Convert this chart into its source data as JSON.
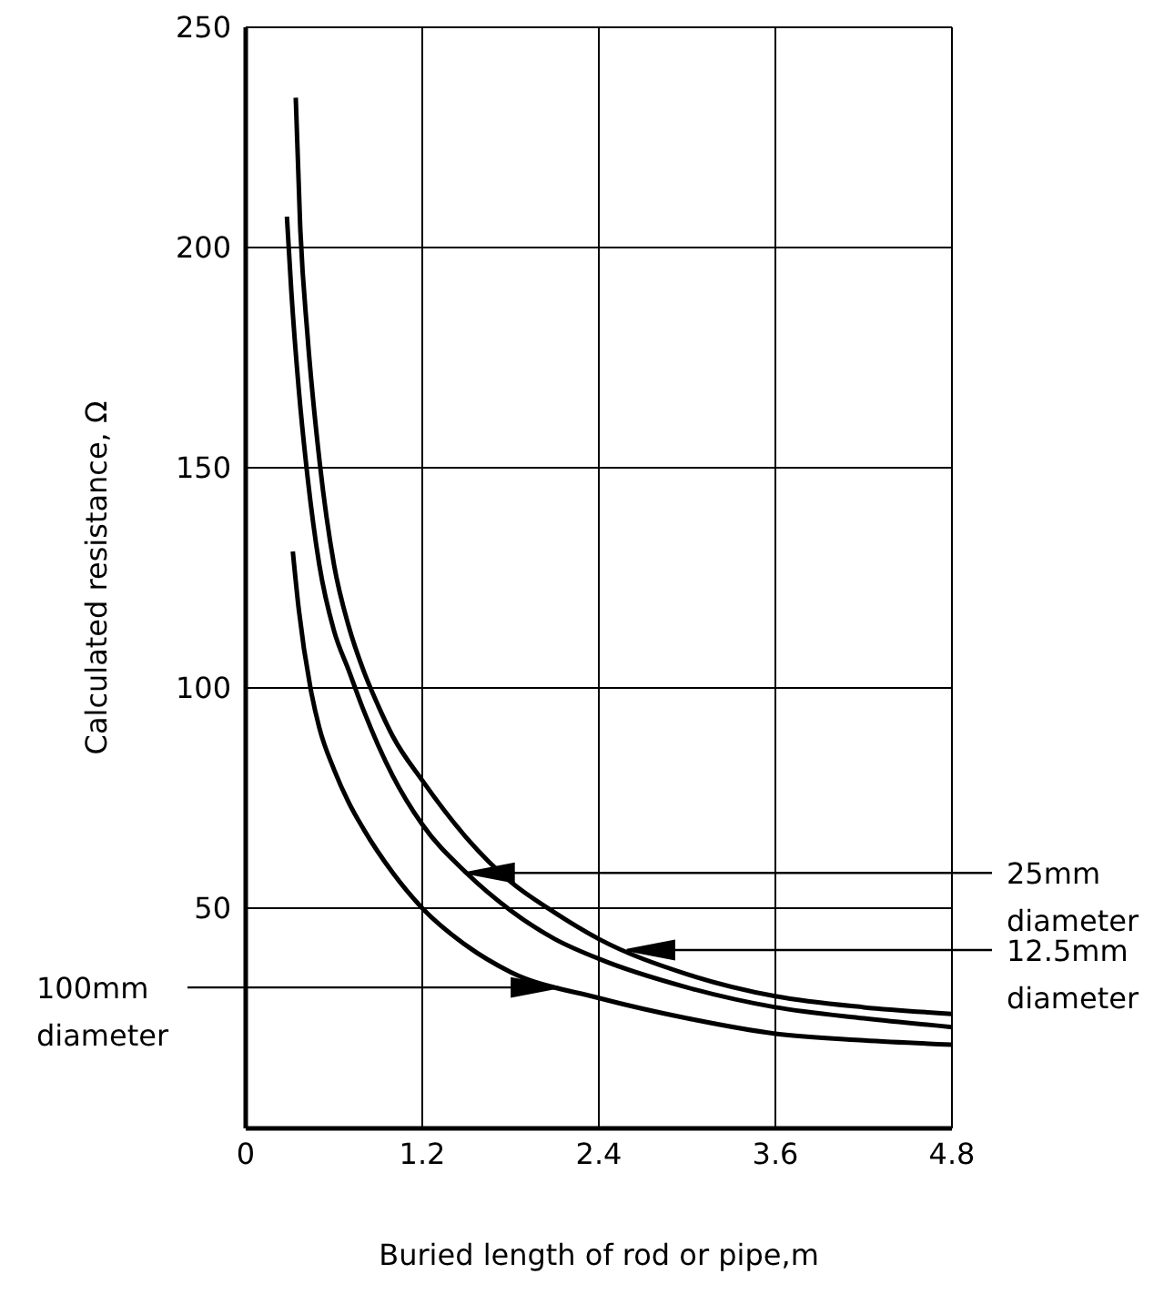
{
  "chart_data": {
    "type": "line",
    "xlabel": "Buried length of rod or pipe,m",
    "ylabel": "Calculated resistance, Ω",
    "xlim": [
      0,
      4.8
    ],
    "xticks": [
      0,
      1.2,
      2.4,
      3.6,
      4.8
    ],
    "ylim": [
      0,
      250
    ],
    "yticks": [
      {
        "value": 0,
        "label": null
      },
      50,
      100,
      150,
      200,
      250
    ],
    "grid": true,
    "legend": false,
    "marker": "none",
    "line_style": "solid",
    "series": [
      {
        "color": "#000000",
        "x": [
          0.34,
          0.37,
          0.42,
          0.5,
          0.6,
          0.7,
          0.8,
          0.9,
          1.0,
          1.2,
          1.5,
          1.8,
          2.1,
          2.4,
          3.0,
          3.6,
          4.2,
          4.8
        ],
        "values": [
          234,
          205,
          180,
          152,
          128,
          114,
          104,
          96,
          89,
          79,
          66,
          56,
          49,
          43,
          35,
          30,
          27.5,
          26
        ]
      },
      {
        "color": "#000000",
        "x": [
          0.28,
          0.31,
          0.36,
          0.42,
          0.5,
          0.6,
          0.7,
          0.8,
          0.9,
          1.0,
          1.2,
          1.5,
          1.8,
          2.1,
          2.4,
          3.0,
          3.6,
          4.2,
          4.8
        ],
        "values": [
          207,
          190,
          168,
          148,
          128,
          113,
          104,
          95,
          87,
          80,
          69,
          58,
          49.5,
          43,
          38.5,
          32,
          27.5,
          25,
          23
        ]
      },
      {
        "color": "#000000",
        "x": [
          0.32,
          0.36,
          0.44,
          0.5,
          0.6,
          0.7,
          0.8,
          1.0,
          1.2,
          1.5,
          1.8,
          2.4,
          3.0,
          3.6,
          4.2,
          4.8
        ],
        "values": [
          131,
          118,
          100,
          91,
          81.5,
          74,
          68,
          58,
          50,
          41.5,
          35.5,
          29.6,
          25,
          21.5,
          20,
          19
        ]
      }
    ],
    "annotations": [
      {
        "text": "25mm diameter",
        "x": 1.5,
        "y": 58
      },
      {
        "text": "12.5mm diameter",
        "x": 2.59,
        "y": 40.5
      },
      {
        "text": "100mm diameter",
        "x": 2.13,
        "y": 32
      }
    ]
  }
}
